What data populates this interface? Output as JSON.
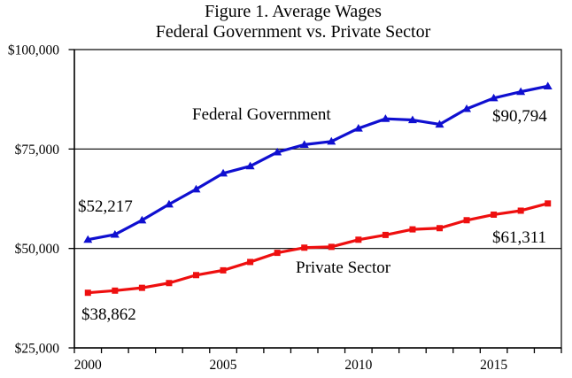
{
  "title": {
    "line1": "Figure 1. Average Wages",
    "line2": "Federal Government vs. Private Sector"
  },
  "chart_data": {
    "type": "line",
    "title": "Figure 1. Average Wages",
    "subtitle": "Federal Government vs. Private Sector",
    "x": [
      2000,
      2001,
      2002,
      2003,
      2004,
      2005,
      2006,
      2007,
      2008,
      2009,
      2010,
      2011,
      2012,
      2013,
      2014,
      2015,
      2016,
      2017
    ],
    "series": [
      {
        "name": "Federal Government",
        "color": "#0f0fd0",
        "marker": "triangle",
        "values": [
          52217,
          53500,
          57100,
          61100,
          64900,
          68900,
          70700,
          74200,
          76100,
          76900,
          80200,
          82600,
          82300,
          81200,
          85100,
          87800,
          89400,
          90794
        ]
      },
      {
        "name": "Private Sector",
        "color": "#ee0f0f",
        "marker": "square",
        "values": [
          38862,
          39400,
          40100,
          41300,
          43300,
          44500,
          46600,
          48900,
          50200,
          50400,
          52200,
          53400,
          54800,
          55100,
          57100,
          58500,
          59500,
          61311
        ]
      }
    ],
    "ylim": [
      25000,
      100000
    ],
    "y_ticks": [
      {
        "value": 100000,
        "label": "$100,000"
      },
      {
        "value": 75000,
        "label": "$75,000"
      },
      {
        "value": 50000,
        "label": "$50,000"
      },
      {
        "value": 25000,
        "label": "$25,000"
      }
    ],
    "x_ticks": [
      {
        "year": 2000,
        "label": "2000"
      },
      {
        "year": 2005,
        "label": "2005"
      },
      {
        "year": 2010,
        "label": "2010"
      },
      {
        "year": 2015,
        "label": "2015"
      }
    ],
    "gridlines": [
      75000,
      50000
    ],
    "grid": "horizontal-only",
    "legend_position": "none-inline-labels"
  },
  "annotations": {
    "federal_start": "$52,217",
    "federal_series_label": "Federal Government",
    "federal_end": "$90,794",
    "private_start": "$38,862",
    "private_series_label": "Private Sector",
    "private_end": "$61,311"
  },
  "colors": {
    "federal": "#0f0fd0",
    "private": "#ee0f0f",
    "axis": "#000000",
    "background": "#ffffff"
  }
}
